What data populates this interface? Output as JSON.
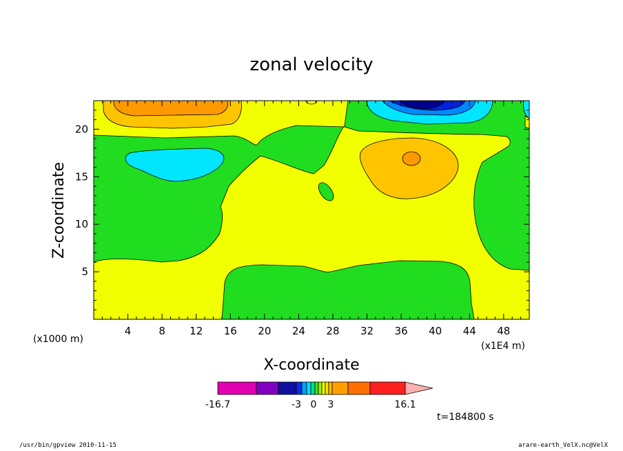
{
  "chart_data": {
    "type": "contour",
    "title": "zonal velocity",
    "xlabel": "X-coordinate",
    "ylabel": "Z-coordinate",
    "x_unit_left": "(x1000 m)",
    "x_unit_right": "(x1E4 m)",
    "xlim": [
      0,
      51
    ],
    "ylim": [
      0,
      23
    ],
    "xticks": [
      4,
      8,
      12,
      16,
      20,
      24,
      28,
      32,
      36,
      40,
      44,
      48
    ],
    "yticks": [
      5,
      10,
      15,
      20
    ],
    "grid": false,
    "time_label": "t=184800 s",
    "colorbar": {
      "min_label": "-16.7",
      "max_label": "16.1",
      "tick_labels": [
        "-16.7",
        "-3",
        "0",
        "3",
        "16.1"
      ],
      "colors": [
        "#e000b0",
        "#8000c0",
        "#1010a0",
        "#0030e0",
        "#00a0ff",
        "#00e0ff",
        "#00e080",
        "#40e020",
        "#a0f000",
        "#f0ff00",
        "#ffe000",
        "#ffc000",
        "#ffa000",
        "#ff7000",
        "#ff2020",
        "#ff8080",
        "#ffb0b0"
      ]
    },
    "fill_colors": {
      "green": "#20dd20",
      "yellow": "#f2ff00",
      "light_orange": "#ffc400",
      "orange": "#ff9900",
      "cyan": "#00e6ff",
      "light_blue": "#0088ff",
      "blue": "#0022dd",
      "dark_blue": "#000090"
    }
  },
  "footer": {
    "left": "/usr/bin/gpview   2010-11-15",
    "right": "arare-earth_VelX.nc@VelX"
  }
}
